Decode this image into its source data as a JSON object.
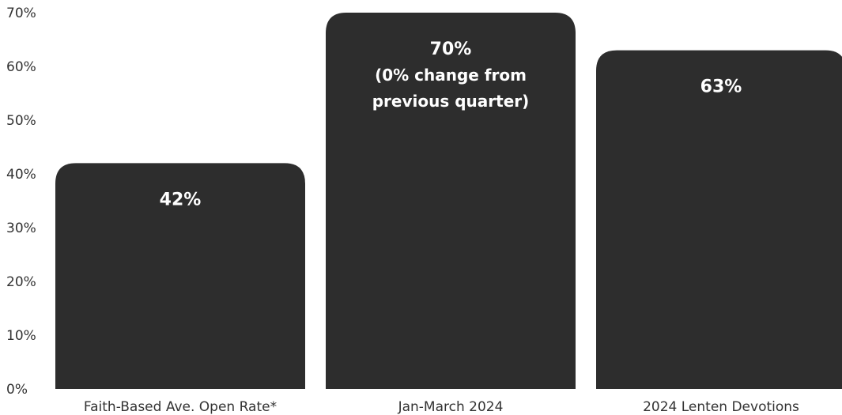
{
  "chart_data": {
    "type": "bar",
    "categories": [
      "Faith-Based Ave. Open Rate*",
      "Jan-March 2024",
      "2024 Lenten Devotions"
    ],
    "values": [
      42,
      70,
      63
    ],
    "data_labels": [
      [
        "42%"
      ],
      [
        "70%",
        "(0% change from",
        "previous quarter)"
      ],
      [
        "63%"
      ]
    ],
    "y_ticks": [
      "0%",
      "10%",
      "20%",
      "30%",
      "40%",
      "50%",
      "60%",
      "70%"
    ],
    "ylim": [
      0,
      70
    ],
    "grid": false,
    "legend": "none",
    "bar_color": "#2d2d2d"
  }
}
